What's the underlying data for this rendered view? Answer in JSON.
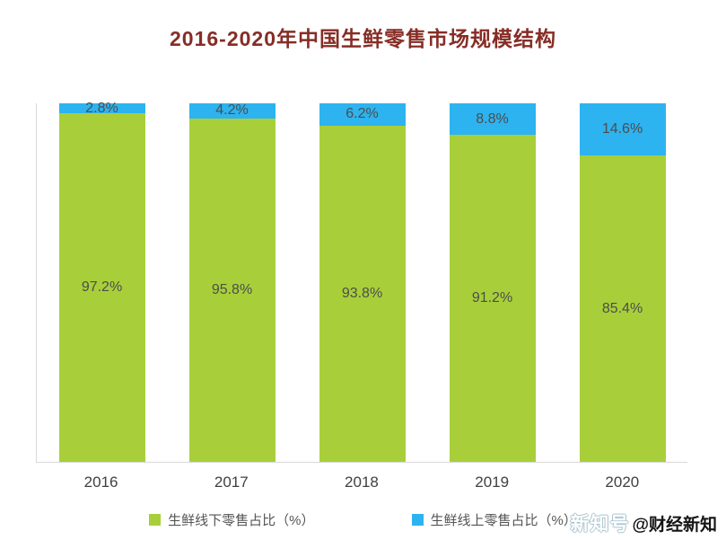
{
  "title": "2016-2020年中国生鲜零售市场规模结构",
  "chart_data": {
    "type": "bar",
    "variant": "stacked-percent-column",
    "title": "2016-2020年中国生鲜零售市场规模结构",
    "categories": [
      "2016",
      "2017",
      "2018",
      "2019",
      "2020"
    ],
    "series": [
      {
        "name": "生鲜线下零售占比（%）",
        "color": "#a8cf3a",
        "values": [
          97.2,
          95.8,
          93.8,
          91.2,
          85.4
        ]
      },
      {
        "name": "生鲜线上零售占比（%）",
        "color": "#2db3ef",
        "values": [
          2.8,
          4.2,
          6.2,
          8.8,
          14.6
        ]
      }
    ],
    "value_suffix": "%",
    "ylim": [
      0,
      100
    ],
    "grid": false,
    "legend_position": "bottom",
    "data_labels": true,
    "label_color": "#4d4d4d"
  },
  "watermark": {
    "prefix": "新知号",
    "handle": "@财经新知"
  }
}
